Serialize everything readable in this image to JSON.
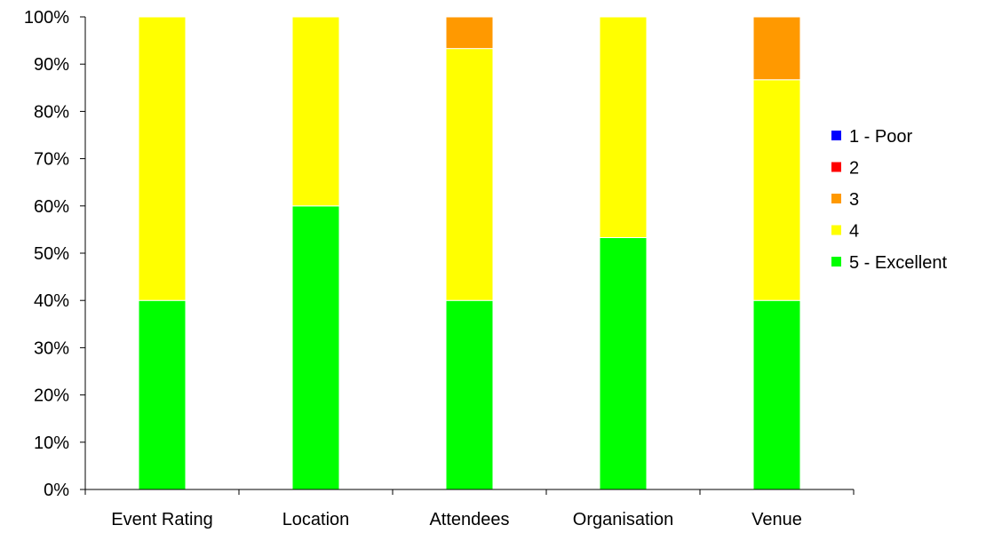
{
  "chart_data": {
    "type": "bar",
    "stacked": true,
    "percent": true,
    "categories": [
      "Event Rating",
      "Location",
      "Attendees",
      "Organisation",
      "Venue"
    ],
    "series": [
      {
        "name": "1 - Poor",
        "color": "#0000ff",
        "values": [
          0,
          0,
          0,
          0,
          0
        ]
      },
      {
        "name": "2",
        "color": "#ff0000",
        "values": [
          0,
          0,
          0,
          0,
          0
        ]
      },
      {
        "name": "3",
        "color": "#ff9900",
        "values": [
          0,
          0,
          6.7,
          0,
          13.3
        ]
      },
      {
        "name": "4",
        "color": "#ffff00",
        "values": [
          60,
          40,
          53.3,
          46.7,
          46.7
        ]
      },
      {
        "name": "5 - Excellent",
        "color": "#00ff00",
        "values": [
          40,
          60,
          40,
          53.3,
          40
        ]
      }
    ],
    "y_ticks": [
      "0%",
      "10%",
      "20%",
      "30%",
      "40%",
      "50%",
      "60%",
      "70%",
      "80%",
      "90%",
      "100%"
    ],
    "ylim": [
      0,
      100
    ],
    "grid": false,
    "legend_position": "right"
  }
}
